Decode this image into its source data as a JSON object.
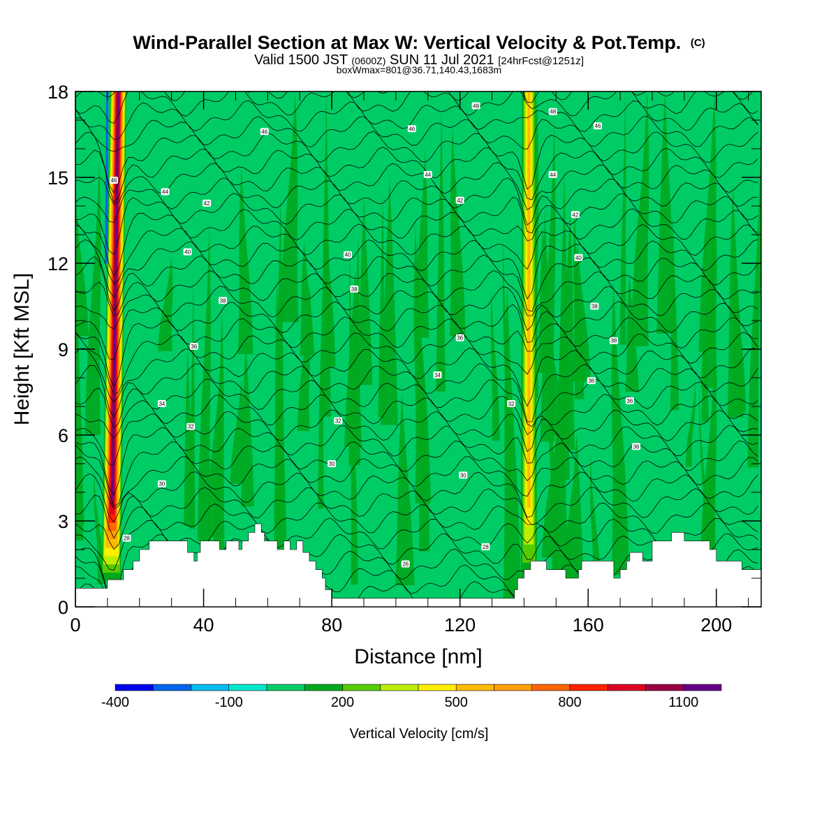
{
  "title": {
    "main": "Wind-Parallel Section at Max W: Vertical Velocity & Pot.Temp.",
    "main_mark": "(C)",
    "line2_a": "Valid 1500 JST",
    "line2_b": "(0600Z)",
    "line2_c": "SUN 11 Jul 2021",
    "line2_d": "[24hrFcst@1251z]",
    "line3": "boxWmax=801@36.71,140.43,1683m"
  },
  "chart_data": {
    "type": "heatmap",
    "subtype": "cross-section with filled contours of vertical velocity and line contours of potential temperature",
    "xlabel": "Distance [nm]",
    "ylabel": "Height [Kft MSL]",
    "xlim": [
      0,
      214
    ],
    "ylim": [
      0,
      18
    ],
    "xticks": [
      0,
      40,
      80,
      120,
      160,
      200
    ],
    "yticks": [
      0,
      3,
      6,
      9,
      12,
      15,
      18
    ],
    "colorbar": {
      "label": "Vertical Velocity [cm/s]",
      "levels": [
        -400,
        -300,
        -200,
        -100,
        0,
        100,
        200,
        300,
        400,
        500,
        600,
        700,
        800,
        900,
        1000,
        1100,
        1200
      ],
      "tick_labels": [
        "-400",
        "-100",
        "200",
        "500",
        "800",
        "1100"
      ],
      "tick_values": [
        -400,
        -100,
        200,
        500,
        800,
        1100
      ],
      "colors": [
        "#0000ee",
        "#0066ee",
        "#00bbf0",
        "#00e8cc",
        "#00cc66",
        "#00a81e",
        "#55cc00",
        "#bbee00",
        "#ffee00",
        "#ffbb00",
        "#ffa000",
        "#ff6600",
        "#ff2200",
        "#dd0022",
        "#990044",
        "#660088"
      ]
    },
    "background_level": 0,
    "updrafts": [
      {
        "name": "plume-west",
        "base_x": 11,
        "top_x": 13.5,
        "peak": 1100,
        "width_nm": 3.0
      },
      {
        "name": "plume-east",
        "x": 141.5,
        "peak": 500,
        "width_nm": 2.5
      }
    ],
    "theta_contours": {
      "units": "C",
      "interval": 1,
      "labeled_values": [
        28,
        30,
        32,
        34,
        36,
        38,
        40,
        42,
        44,
        46
      ],
      "labels": [
        {
          "value": "28",
          "x": 16,
          "y": 2.4
        },
        {
          "value": "30",
          "x": 27,
          "y": 4.3
        },
        {
          "value": "32",
          "x": 36,
          "y": 6.3
        },
        {
          "value": "34",
          "x": 27,
          "y": 7.1
        },
        {
          "value": "36",
          "x": 37,
          "y": 9.1
        },
        {
          "value": "38",
          "x": 46,
          "y": 10.7
        },
        {
          "value": "40",
          "x": 35,
          "y": 12.4
        },
        {
          "value": "42",
          "x": 41,
          "y": 14.1
        },
        {
          "value": "44",
          "x": 28,
          "y": 14.5
        },
        {
          "value": "46",
          "x": 12,
          "y": 14.9
        },
        {
          "value": "46",
          "x": 59,
          "y": 16.6
        },
        {
          "value": "30",
          "x": 80,
          "y": 5.0
        },
        {
          "value": "32",
          "x": 82,
          "y": 6.5
        },
        {
          "value": "34",
          "x": 113,
          "y": 8.1
        },
        {
          "value": "36",
          "x": 120,
          "y": 9.4
        },
        {
          "value": "38",
          "x": 87,
          "y": 11.1
        },
        {
          "value": "40",
          "x": 85,
          "y": 12.3
        },
        {
          "value": "42",
          "x": 120,
          "y": 14.2
        },
        {
          "value": "44",
          "x": 110,
          "y": 15.1
        },
        {
          "value": "46",
          "x": 105,
          "y": 16.7
        },
        {
          "value": "48",
          "x": 125,
          "y": 17.5
        },
        {
          "value": "30",
          "x": 121,
          "y": 4.6
        },
        {
          "value": "28",
          "x": 128,
          "y": 2.1
        },
        {
          "value": "26",
          "x": 103,
          "y": 1.5
        },
        {
          "value": "32",
          "x": 136,
          "y": 7.1
        },
        {
          "value": "36",
          "x": 161,
          "y": 7.9
        },
        {
          "value": "38",
          "x": 168,
          "y": 9.3
        },
        {
          "value": "38",
          "x": 162,
          "y": 10.5
        },
        {
          "value": "40",
          "x": 157,
          "y": 12.2
        },
        {
          "value": "42",
          "x": 156,
          "y": 13.7
        },
        {
          "value": "44",
          "x": 149,
          "y": 15.1
        },
        {
          "value": "46",
          "x": 163,
          "y": 16.8
        },
        {
          "value": "48",
          "x": 149,
          "y": 17.3
        },
        {
          "value": "36",
          "x": 173,
          "y": 7.2
        },
        {
          "value": "36",
          "x": 175,
          "y": 5.6
        }
      ]
    },
    "terrain_kft": {
      "x": [
        0,
        10,
        15,
        18,
        20,
        23,
        33,
        35,
        37,
        38,
        39,
        41,
        45,
        47,
        49,
        51,
        52,
        54,
        56,
        57,
        58,
        59,
        61,
        63,
        65,
        66,
        67,
        69,
        70,
        71,
        73,
        75,
        77,
        78,
        80,
        81,
        90,
        100,
        110,
        120,
        130,
        135,
        137,
        138,
        140,
        142,
        145,
        147,
        149,
        151,
        153,
        155,
        157,
        158,
        161,
        165,
        167,
        168,
        170,
        172,
        173,
        175,
        177,
        180,
        182,
        184,
        186,
        188,
        190,
        192,
        194,
        196,
        198,
        200,
        202,
        204,
        206,
        208,
        210,
        214
      ],
      "y": [
        0.65,
        0.95,
        1.3,
        1.6,
        2.0,
        2.3,
        2.3,
        1.9,
        1.6,
        1.9,
        2.3,
        2.3,
        2.0,
        2.3,
        2.3,
        2.0,
        2.3,
        2.6,
        2.9,
        2.9,
        2.6,
        2.3,
        2.3,
        2.0,
        2.3,
        2.3,
        2.0,
        2.3,
        2.3,
        1.9,
        1.6,
        1.3,
        1.0,
        0.6,
        0.3,
        0.3,
        0.3,
        0.3,
        0.3,
        0.3,
        0.3,
        0.3,
        0.6,
        1.0,
        1.3,
        1.6,
        1.6,
        1.3,
        1.3,
        1.3,
        1.0,
        1.0,
        1.3,
        1.6,
        1.6,
        1.6,
        1.6,
        1.0,
        1.3,
        1.6,
        1.9,
        1.9,
        1.6,
        2.3,
        2.3,
        2.3,
        2.6,
        2.6,
        2.3,
        2.3,
        2.3,
        2.3,
        2.0,
        1.6,
        1.6,
        1.6,
        1.6,
        1.3,
        1.3,
        1.3
      ]
    }
  }
}
